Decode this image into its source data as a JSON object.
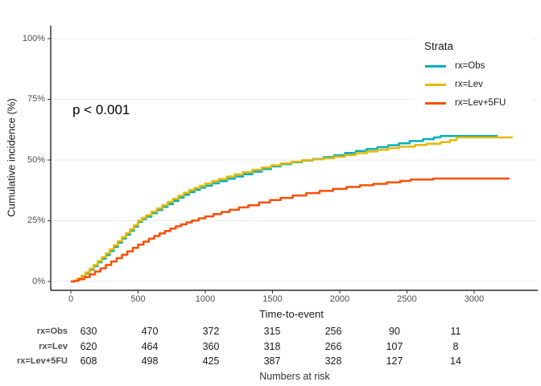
{
  "chart_data": {
    "type": "line",
    "subtype": "step-cumulative-incidence",
    "xlabel": "Time-to-event",
    "ylabel": "Cumulative incidence (%)",
    "annotation": "p < 0.001",
    "xlim": [
      0,
      3400
    ],
    "ylim": [
      0,
      100
    ],
    "grid": "horizontal-only",
    "xticks": [
      0,
      500,
      1000,
      1500,
      2000,
      2500,
      3000
    ],
    "yticks": [
      "0%",
      "25%",
      "50%",
      "75%",
      "100%"
    ],
    "ytick_values": [
      0,
      25,
      50,
      75,
      100
    ],
    "series": [
      {
        "name": "rx=Obs",
        "color": "#00AFBB",
        "points": [
          [
            0,
            0
          ],
          [
            25,
            0.3
          ],
          [
            50,
            1
          ],
          [
            80,
            2.1
          ],
          [
            110,
            3.3
          ],
          [
            140,
            4.8
          ],
          [
            170,
            6.3
          ],
          [
            200,
            7.9
          ],
          [
            230,
            9.4
          ],
          [
            260,
            10.9
          ],
          [
            290,
            12.5
          ],
          [
            320,
            14.2
          ],
          [
            350,
            16
          ],
          [
            380,
            17.7
          ],
          [
            410,
            19.3
          ],
          [
            440,
            20.9
          ],
          [
            470,
            22.6
          ],
          [
            500,
            24.5
          ],
          [
            530,
            25.7
          ],
          [
            560,
            26.7
          ],
          [
            600,
            28.1
          ],
          [
            640,
            29.4
          ],
          [
            680,
            30.7
          ],
          [
            720,
            31.9
          ],
          [
            760,
            33.2
          ],
          [
            800,
            34.5
          ],
          [
            840,
            35.7
          ],
          [
            880,
            36.8
          ],
          [
            920,
            37.7
          ],
          [
            960,
            38.6
          ],
          [
            1000,
            39.4
          ],
          [
            1050,
            40.4
          ],
          [
            1100,
            41.3
          ],
          [
            1160,
            42.3
          ],
          [
            1220,
            43.2
          ],
          [
            1280,
            44.1
          ],
          [
            1350,
            45.2
          ],
          [
            1420,
            46.3
          ],
          [
            1490,
            47.4
          ],
          [
            1560,
            48.3
          ],
          [
            1640,
            49.1
          ],
          [
            1720,
            49.8
          ],
          [
            1800,
            50.4
          ],
          [
            1880,
            51.2
          ],
          [
            1960,
            52
          ],
          [
            2040,
            52.9
          ],
          [
            2120,
            53.7
          ],
          [
            2200,
            54.5
          ],
          [
            2280,
            55.3
          ],
          [
            2360,
            56.1
          ],
          [
            2440,
            56.9
          ],
          [
            2520,
            57.8
          ],
          [
            2620,
            58.6
          ],
          [
            2700,
            59.3
          ],
          [
            2749,
            59.9
          ],
          [
            3174,
            59.9
          ]
        ]
      },
      {
        "name": "rx=Lev",
        "color": "#E7B800",
        "points": [
          [
            0,
            0
          ],
          [
            25,
            0.4
          ],
          [
            50,
            1.2
          ],
          [
            80,
            2.4
          ],
          [
            110,
            3.7
          ],
          [
            140,
            5.2
          ],
          [
            170,
            6.8
          ],
          [
            200,
            8.4
          ],
          [
            230,
            10
          ],
          [
            260,
            11.6
          ],
          [
            290,
            13.2
          ],
          [
            320,
            14.9
          ],
          [
            350,
            16.6
          ],
          [
            380,
            18.3
          ],
          [
            410,
            19.9
          ],
          [
            440,
            21.5
          ],
          [
            470,
            23.2
          ],
          [
            500,
            25
          ],
          [
            530,
            26.2
          ],
          [
            560,
            27.3
          ],
          [
            600,
            28.7
          ],
          [
            640,
            30.1
          ],
          [
            680,
            31.4
          ],
          [
            720,
            32.7
          ],
          [
            760,
            34
          ],
          [
            800,
            35.3
          ],
          [
            840,
            36.5
          ],
          [
            880,
            37.6
          ],
          [
            920,
            38.5
          ],
          [
            960,
            39.4
          ],
          [
            1000,
            40.3
          ],
          [
            1050,
            41.3
          ],
          [
            1100,
            42.2
          ],
          [
            1160,
            43.2
          ],
          [
            1220,
            44.1
          ],
          [
            1280,
            45
          ],
          [
            1350,
            46
          ],
          [
            1420,
            46.9
          ],
          [
            1490,
            47.8
          ],
          [
            1560,
            48.6
          ],
          [
            1640,
            49.3
          ],
          [
            1720,
            49.9
          ],
          [
            1800,
            50.3
          ],
          [
            1880,
            50.8
          ],
          [
            1960,
            51.4
          ],
          [
            2040,
            52.1
          ],
          [
            2120,
            52.8
          ],
          [
            2200,
            53.5
          ],
          [
            2280,
            54.2
          ],
          [
            2360,
            54.9
          ],
          [
            2440,
            55.5
          ],
          [
            2560,
            56.2
          ],
          [
            2647,
            56.7
          ],
          [
            2750,
            57.4
          ],
          [
            2820,
            58.2
          ],
          [
            2868,
            59.3
          ],
          [
            3287,
            59.3
          ]
        ]
      },
      {
        "name": "rx=Lev+5FU",
        "color": "#FC4E07",
        "points": [
          [
            0,
            0
          ],
          [
            30,
            0.3
          ],
          [
            60,
            0.9
          ],
          [
            100,
            1.8
          ],
          [
            140,
            2.9
          ],
          [
            180,
            4.1
          ],
          [
            220,
            5.4
          ],
          [
            260,
            6.8
          ],
          [
            300,
            8.2
          ],
          [
            340,
            9.6
          ],
          [
            380,
            11
          ],
          [
            420,
            12.4
          ],
          [
            460,
            13.8
          ],
          [
            500,
            15.2
          ],
          [
            540,
            16.4
          ],
          [
            580,
            17.6
          ],
          [
            620,
            18.7
          ],
          [
            660,
            19.8
          ],
          [
            700,
            20.8
          ],
          [
            740,
            21.8
          ],
          [
            780,
            22.7
          ],
          [
            820,
            23.5
          ],
          [
            860,
            24.3
          ],
          [
            900,
            25.1
          ],
          [
            950,
            26
          ],
          [
            1000,
            26.8
          ],
          [
            1060,
            27.7
          ],
          [
            1120,
            28.6
          ],
          [
            1180,
            29.5
          ],
          [
            1250,
            30.5
          ],
          [
            1320,
            31.4
          ],
          [
            1400,
            32.5
          ],
          [
            1480,
            33.5
          ],
          [
            1560,
            34.4
          ],
          [
            1650,
            35.4
          ],
          [
            1750,
            36.4
          ],
          [
            1850,
            37.3
          ],
          [
            1950,
            38.1
          ],
          [
            2050,
            38.9
          ],
          [
            2150,
            39.6
          ],
          [
            2250,
            40.2
          ],
          [
            2350,
            40.8
          ],
          [
            2450,
            41.4
          ],
          [
            2527,
            42
          ],
          [
            2695,
            42.4
          ],
          [
            3263,
            42.4
          ]
        ]
      }
    ]
  },
  "legend": {
    "title": "Strata",
    "position": "top-right-inside",
    "items": [
      {
        "label": "rx=Obs",
        "color": "#00AFBB"
      },
      {
        "label": "rx=Lev",
        "color": "#E7B800"
      },
      {
        "label": "rx=Lev+5FU",
        "color": "#FC4E07"
      }
    ]
  },
  "risk_table": {
    "title": "Numbers at risk",
    "times": [
      0,
      500,
      1000,
      1500,
      2000,
      2500,
      3000
    ],
    "rows": [
      {
        "label": "rx=Obs",
        "values": [
          630,
          470,
          372,
          315,
          256,
          90,
          11
        ]
      },
      {
        "label": "rx=Lev",
        "values": [
          620,
          464,
          360,
          318,
          266,
          107,
          8
        ]
      },
      {
        "label": "rx=Lev+5FU",
        "values": [
          608,
          498,
          425,
          387,
          328,
          127,
          14
        ]
      }
    ]
  },
  "colors": {
    "grid": "#ebebeb",
    "axis_line": "#000000",
    "axis_text": "#4d4d4d",
    "text": "#1a1a1a",
    "background": "#ffffff"
  }
}
